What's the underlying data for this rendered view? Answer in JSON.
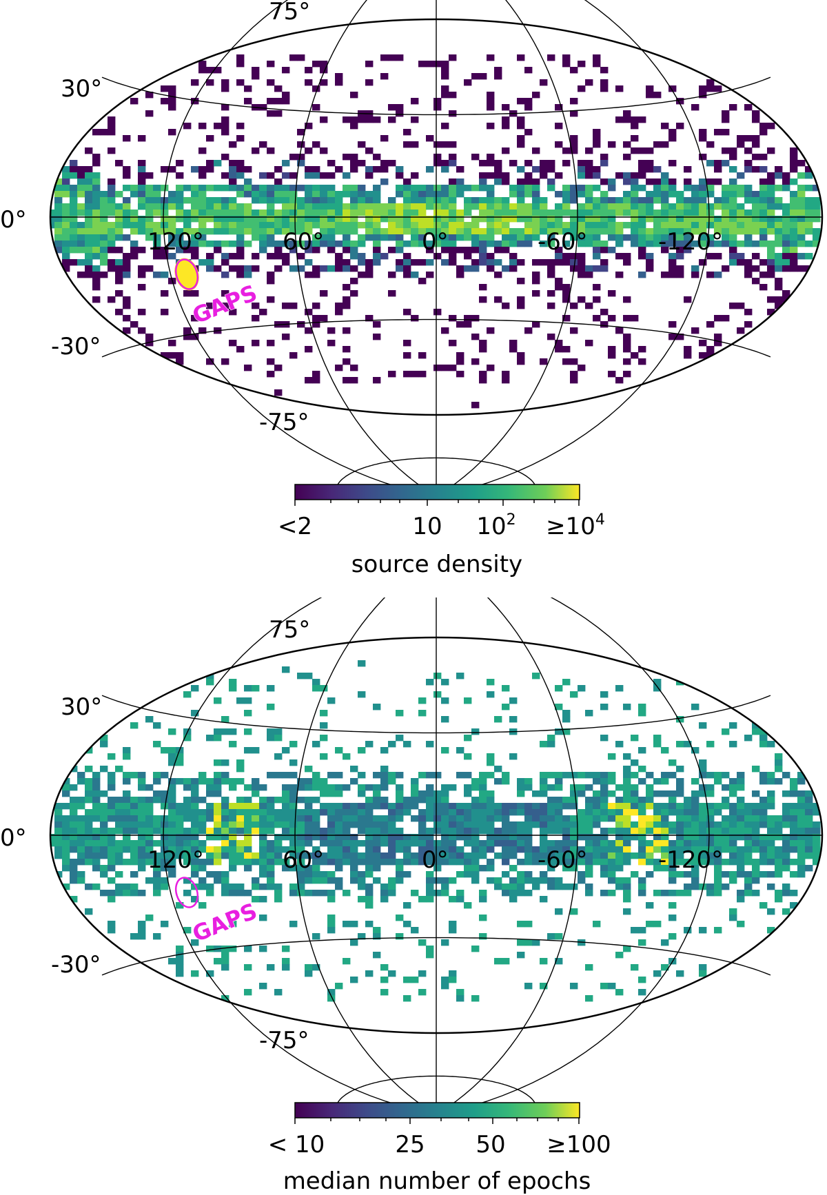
{
  "maps": [
    {
      "id": "density",
      "projection": "hammer-aitoff",
      "coordinate_frame": "galactic",
      "lat_labels": [
        "75°",
        "30°",
        "0°",
        "-30°",
        "-75°"
      ],
      "lon_labels": [
        "120°",
        "60°",
        "0°",
        "-60°",
        "-120°"
      ],
      "region_label": "GAPS",
      "colorbar": {
        "label": "source density",
        "scale": "log",
        "colormap": "viridis",
        "tick_labels": [
          "<2",
          "10",
          "10",
          "≥10"
        ],
        "tick_superscripts": [
          "",
          "",
          "2",
          "4"
        ]
      }
    },
    {
      "id": "epochs",
      "projection": "hammer-aitoff",
      "coordinate_frame": "galactic",
      "lat_labels": [
        "75°",
        "30°",
        "0°",
        "-30°",
        "-75°"
      ],
      "lon_labels": [
        "120°",
        "60°",
        "0°",
        "-60°",
        "-120°"
      ],
      "region_label": "GAPS",
      "colorbar": {
        "label": "median number of epochs",
        "scale": "log",
        "colormap": "viridis",
        "tick_labels": [
          "< 10",
          "25",
          "50",
          "≥100"
        ],
        "tick_superscripts": [
          "",
          "",
          "",
          ""
        ]
      }
    }
  ],
  "colors": {
    "viridis_low": "#440154",
    "viridis_mid": "#21908c",
    "viridis_high": "#fde725",
    "region_outline": "#e81fe0",
    "grid": "#000000"
  }
}
